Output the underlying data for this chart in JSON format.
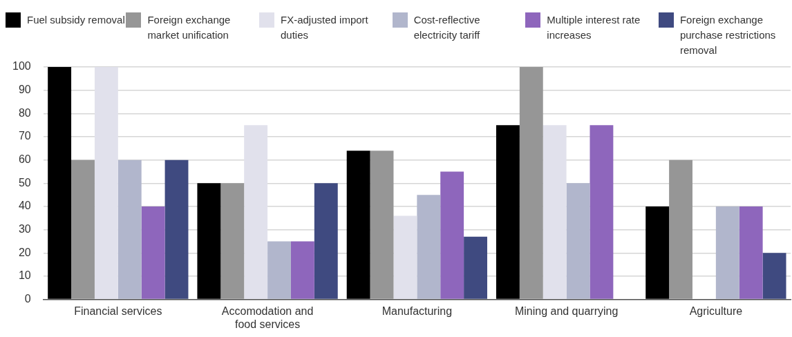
{
  "chart_data": {
    "type": "bar",
    "categories": [
      "Financial services",
      "Accomodation and food services",
      "Manufacturing",
      "Mining and quarrying",
      "Agriculture"
    ],
    "series": [
      {
        "name": "Fuel subsidy removal",
        "color": "#000000",
        "values": [
          100,
          50,
          64,
          75,
          40
        ]
      },
      {
        "name": "Foreign exchange market unification",
        "color": "#969696",
        "values": [
          60,
          50,
          64,
          100,
          60
        ]
      },
      {
        "name": "FX-adjusted import duties",
        "color": "#e1e1ec",
        "values": [
          100,
          75,
          36,
          75,
          0
        ]
      },
      {
        "name": "Cost-reflective electricity tariff",
        "color": "#b1b6cc",
        "values": [
          60,
          25,
          45,
          50,
          40
        ]
      },
      {
        "name": "Multiple interest rate increases",
        "color": "#8e66bc",
        "values": [
          40,
          25,
          55,
          75,
          40
        ]
      },
      {
        "name": "Foreign exchange purchase restrictions removal",
        "color": "#3f4a80",
        "values": [
          60,
          50,
          27,
          0,
          20
        ]
      }
    ],
    "ylim": [
      0,
      100
    ],
    "yticks": [
      0,
      10,
      20,
      30,
      40,
      50,
      60,
      70,
      80,
      90,
      100
    ],
    "grid": "y",
    "legend": "top"
  }
}
